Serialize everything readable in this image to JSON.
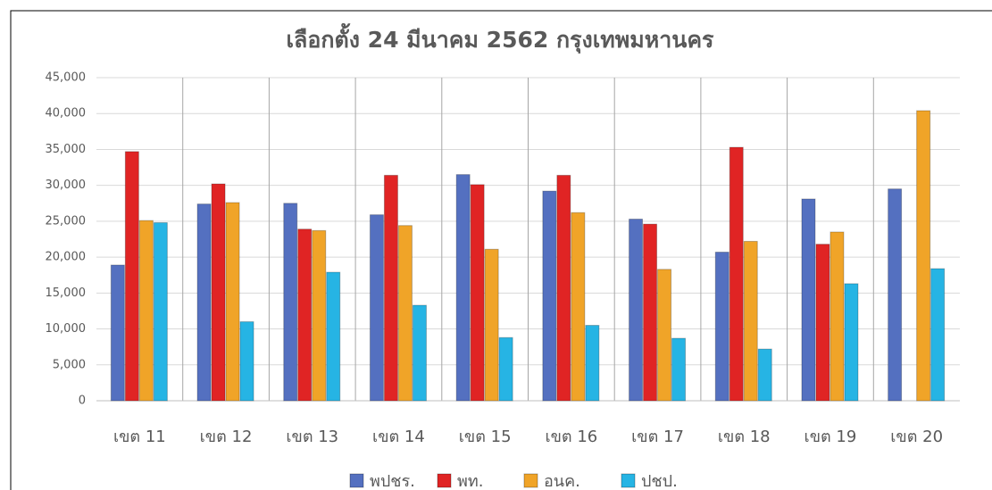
{
  "chart_data": {
    "type": "bar",
    "title": "เลือกตั้ง 24 มีนาคม 2562 กรุงเทพมหานคร",
    "categories": [
      "เขต 11",
      "เขต 12",
      "เขต 13",
      "เขต 14",
      "เขต 15",
      "เขต 16",
      "เขต 17",
      "เขต 18",
      "เขต 19",
      "เขต 20"
    ],
    "series": [
      {
        "name": "พปชร.",
        "color": "#5470c0",
        "values": [
          18900,
          27400,
          27500,
          25900,
          31500,
          29200,
          25300,
          20700,
          28100,
          29500
        ]
      },
      {
        "name": "พท.",
        "color": "#e02424",
        "values": [
          34700,
          30200,
          23900,
          31400,
          30100,
          31400,
          24600,
          35300,
          21800,
          null
        ]
      },
      {
        "name": "อนค.",
        "color": "#f0a428",
        "values": [
          25100,
          27600,
          23700,
          24400,
          21100,
          26200,
          18300,
          22200,
          23500,
          40400
        ]
      },
      {
        "name": "ปชป.",
        "color": "#26b4e4",
        "values": [
          24800,
          11000,
          17900,
          13300,
          8800,
          10500,
          8700,
          7200,
          16300,
          18400
        ]
      }
    ],
    "ylim": [
      0,
      45000
    ],
    "yticks": [
      0,
      {
        "value": 5000,
        "label": "5,000"
      },
      {
        "value": 10000,
        "label": "10,000"
      },
      {
        "value": 15000,
        "label": "15,000"
      },
      {
        "value": 20000,
        "label": "20,000"
      },
      {
        "value": 25000,
        "label": "25,000"
      },
      {
        "value": 30000,
        "label": "30,000"
      },
      {
        "value": 35000,
        "label": "35,000"
      },
      {
        "value": 40000,
        "label": "40,000"
      },
      {
        "value": 45000,
        "label": "45,000"
      }
    ],
    "grid": true,
    "legend": "bottom"
  }
}
